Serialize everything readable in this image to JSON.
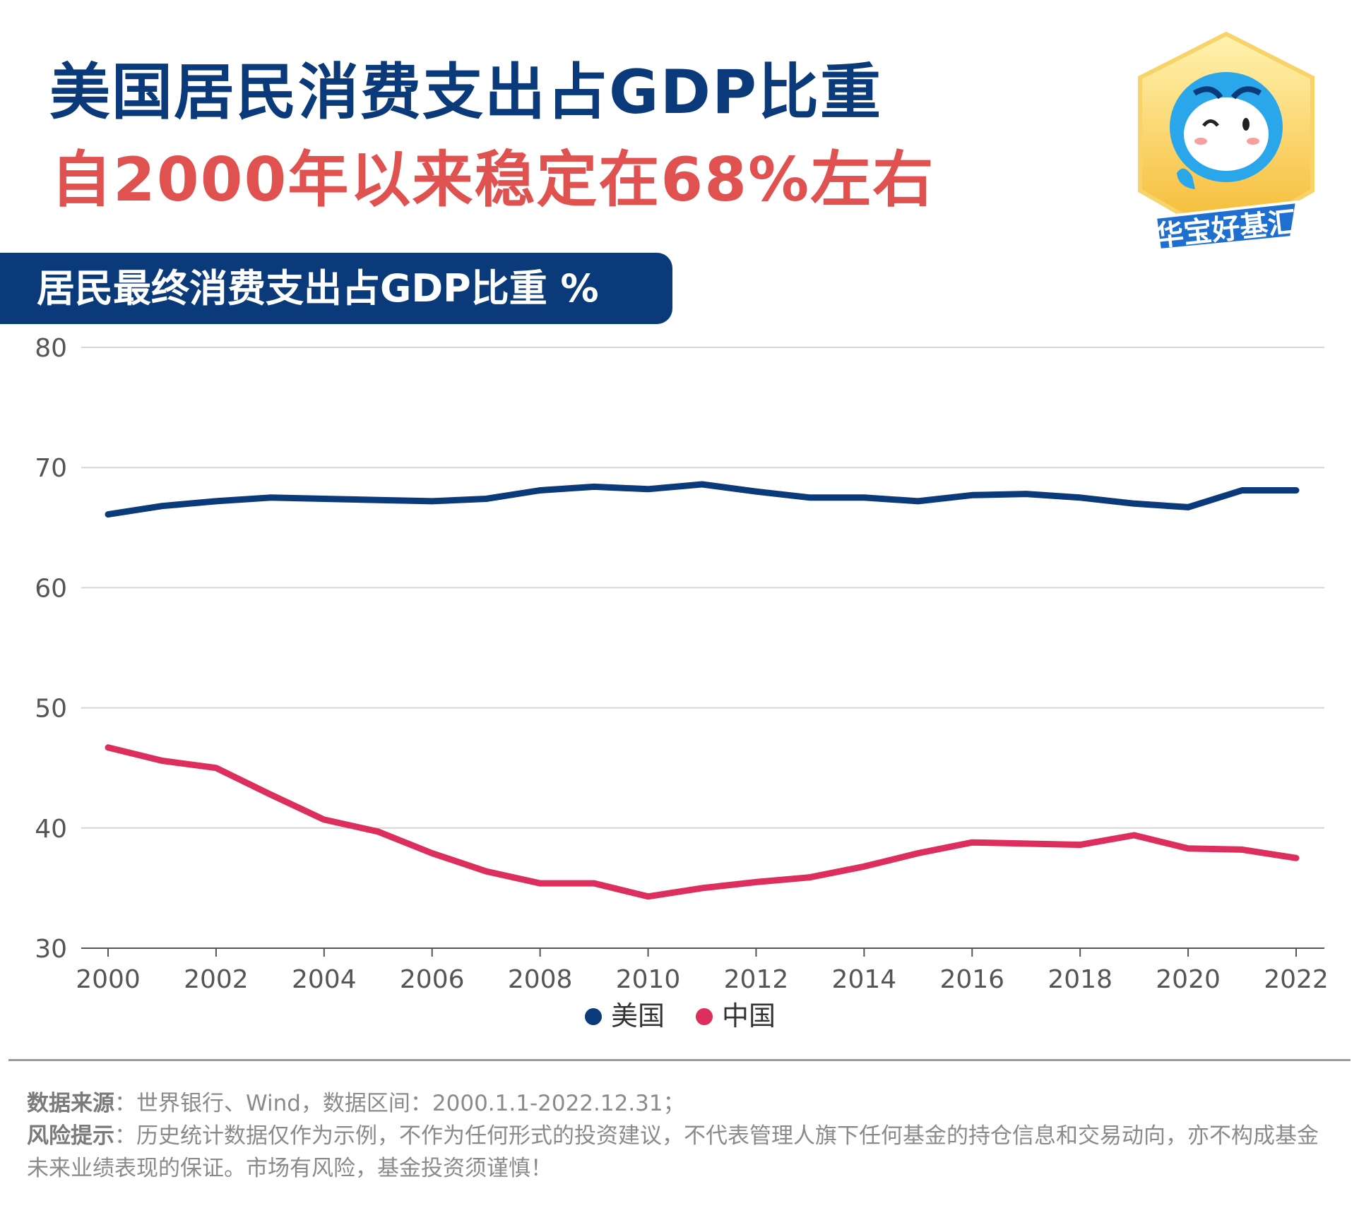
{
  "header": {
    "title_line1": "美国居民消费支出占GDP比重",
    "title_line2": "自2000年以来稳定在68%左右"
  },
  "logo": {
    "text": "华宝好基汇",
    "icon": "mascot-badge-icon"
  },
  "banner": {
    "label": "居民最终消费支出占GDP比重 %"
  },
  "chart_data": {
    "type": "line",
    "x": [
      2000,
      2001,
      2002,
      2003,
      2004,
      2005,
      2006,
      2007,
      2008,
      2009,
      2010,
      2011,
      2012,
      2013,
      2014,
      2015,
      2016,
      2017,
      2018,
      2019,
      2020,
      2021,
      2022
    ],
    "x_tick_labels": [
      "2000",
      "2002",
      "2004",
      "2006",
      "2008",
      "2010",
      "2012",
      "2014",
      "2016",
      "2018",
      "2020",
      "2022"
    ],
    "y_tick_labels": [
      "30",
      "40",
      "50",
      "60",
      "70",
      "80"
    ],
    "ylim": [
      30,
      80
    ],
    "grid": true,
    "legend_position": "bottom-center",
    "series": [
      {
        "name": "美国",
        "color": "#0b3a7a",
        "values": [
          66.1,
          66.8,
          67.2,
          67.5,
          67.4,
          67.3,
          67.2,
          67.4,
          68.1,
          68.4,
          68.2,
          68.6,
          68.0,
          67.5,
          67.5,
          67.2,
          67.7,
          67.8,
          67.5,
          67.0,
          66.7,
          68.1,
          68.1
        ]
      },
      {
        "name": "中国",
        "color": "#dc2f5e",
        "values": [
          46.7,
          45.6,
          45.0,
          42.8,
          40.7,
          39.7,
          37.9,
          36.4,
          35.4,
          35.4,
          34.3,
          35.0,
          35.5,
          35.9,
          36.8,
          37.9,
          38.8,
          38.7,
          38.6,
          39.4,
          38.3,
          38.2,
          37.5
        ]
      }
    ]
  },
  "footer": {
    "source_label": "数据来源",
    "source_text": "：世界银行、Wind，数据区间：2000.1.1-2022.12.31；",
    "risk_label": "风险提示",
    "risk_text": "：历史统计数据仅作为示例，不作为任何形式的投资建议，不代表管理人旗下任何基金的持仓信息和交易动向，亦不构成基金未来业绩表现的保证。市场有风险，基金投资须谨慎！"
  }
}
